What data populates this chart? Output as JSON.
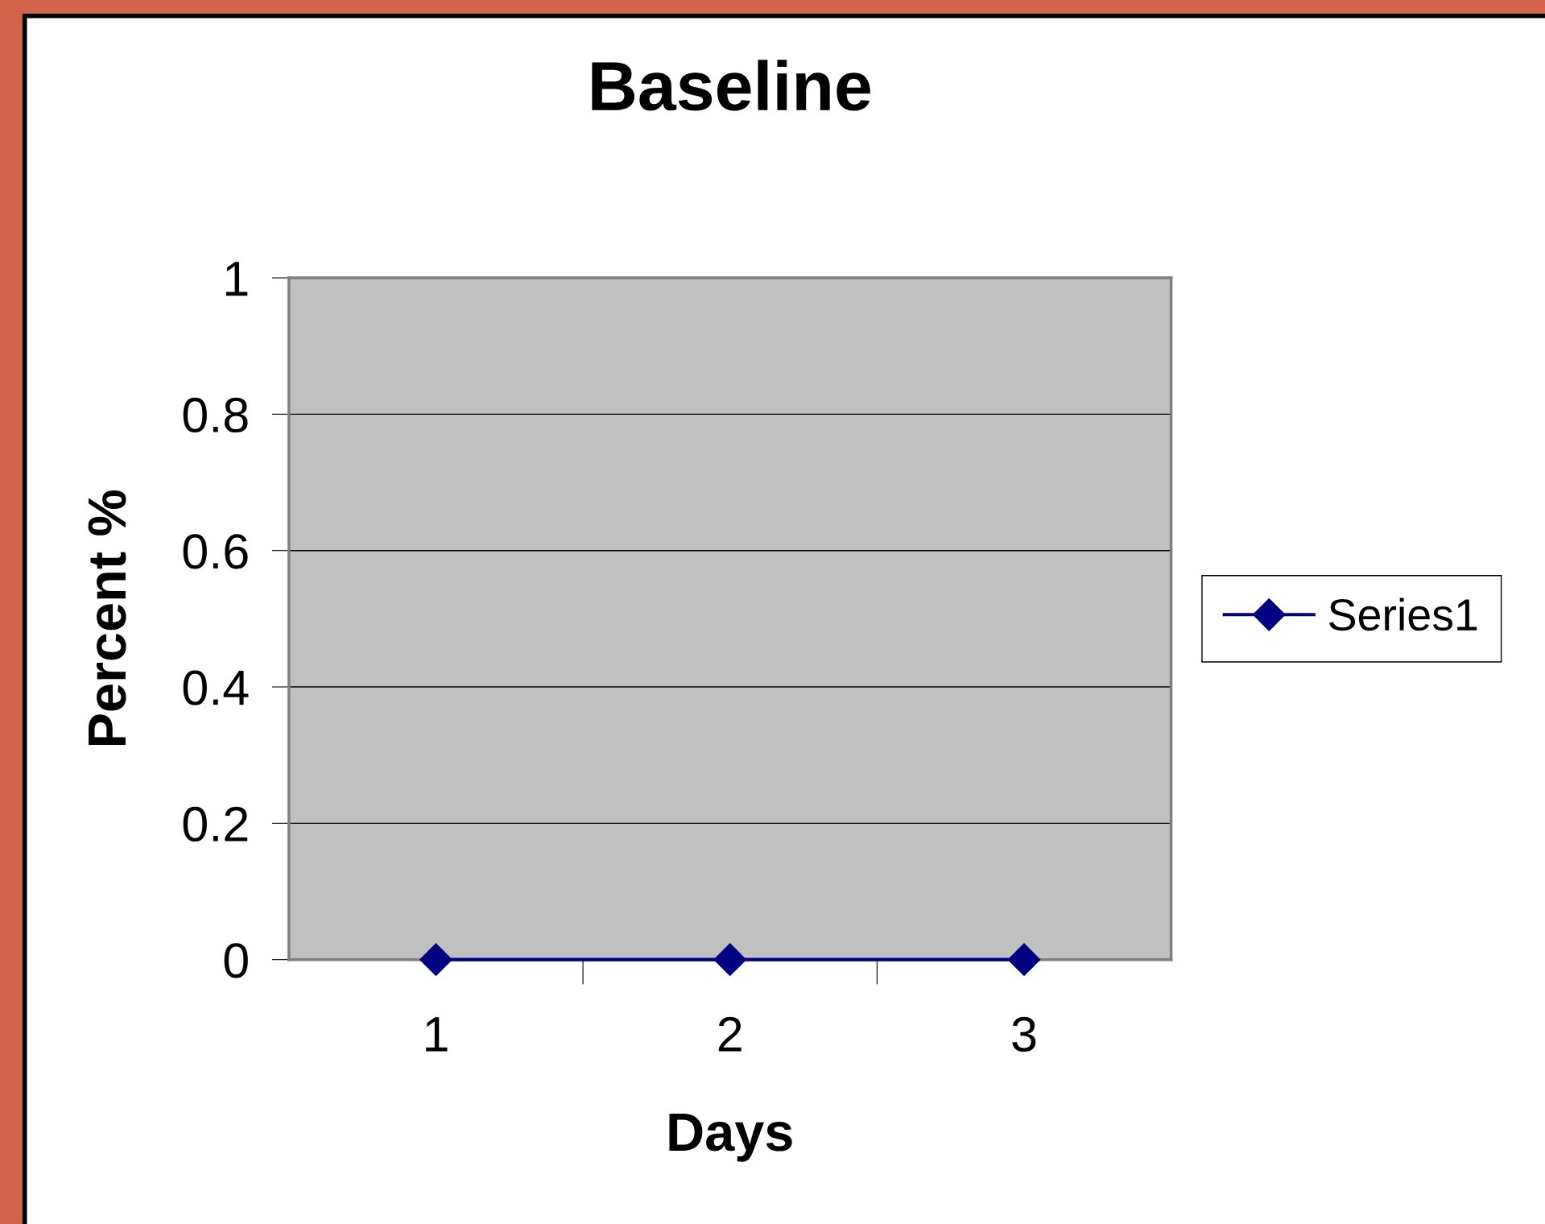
{
  "chart_data": {
    "type": "line",
    "title": "Baseline",
    "xlabel": "Days",
    "ylabel": "Percent %",
    "categories": [
      "1",
      "2",
      "3"
    ],
    "series": [
      {
        "name": "Series1",
        "color": "#000080",
        "values": [
          0,
          0,
          0
        ]
      }
    ],
    "ylim": [
      0,
      1
    ],
    "yticks": [
      0,
      0.2,
      0.4,
      0.6,
      0.8,
      1
    ],
    "grid": "y",
    "legend": "right",
    "marker": "diamond",
    "line_style": "solid"
  }
}
